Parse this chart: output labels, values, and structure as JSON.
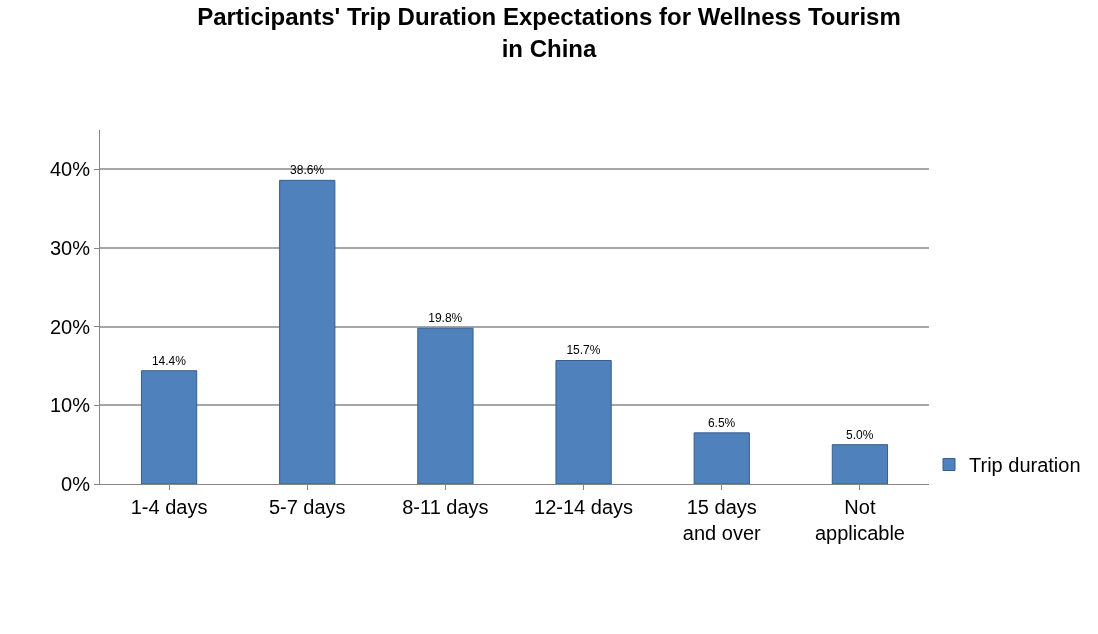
{
  "chart_data": {
    "type": "bar",
    "title": "Participants' Trip Duration Expectations for Wellness Tourism in China",
    "categories": [
      "1-4 days",
      "5-7 days",
      "8-11 days",
      "12-14 days",
      "15 days and over",
      "Not applicable"
    ],
    "series": [
      {
        "name": "Trip duration",
        "color": "#4f81bd",
        "values": [
          14.4,
          38.6,
          19.8,
          15.7,
          6.5,
          5.0
        ],
        "value_labels": [
          "14.4%",
          "38.6%",
          "19.8%",
          "15.7%",
          "6.5%",
          "5.0%"
        ]
      }
    ],
    "ylim": [
      0,
      45
    ],
    "yticks": [
      {
        "value": 0,
        "label": "0%"
      },
      {
        "value": 10,
        "label": "10%"
      },
      {
        "value": 20,
        "label": "20%"
      },
      {
        "value": 30,
        "label": "30%"
      },
      {
        "value": 40,
        "label": "40%"
      }
    ],
    "grid": "y",
    "legend": "right"
  }
}
